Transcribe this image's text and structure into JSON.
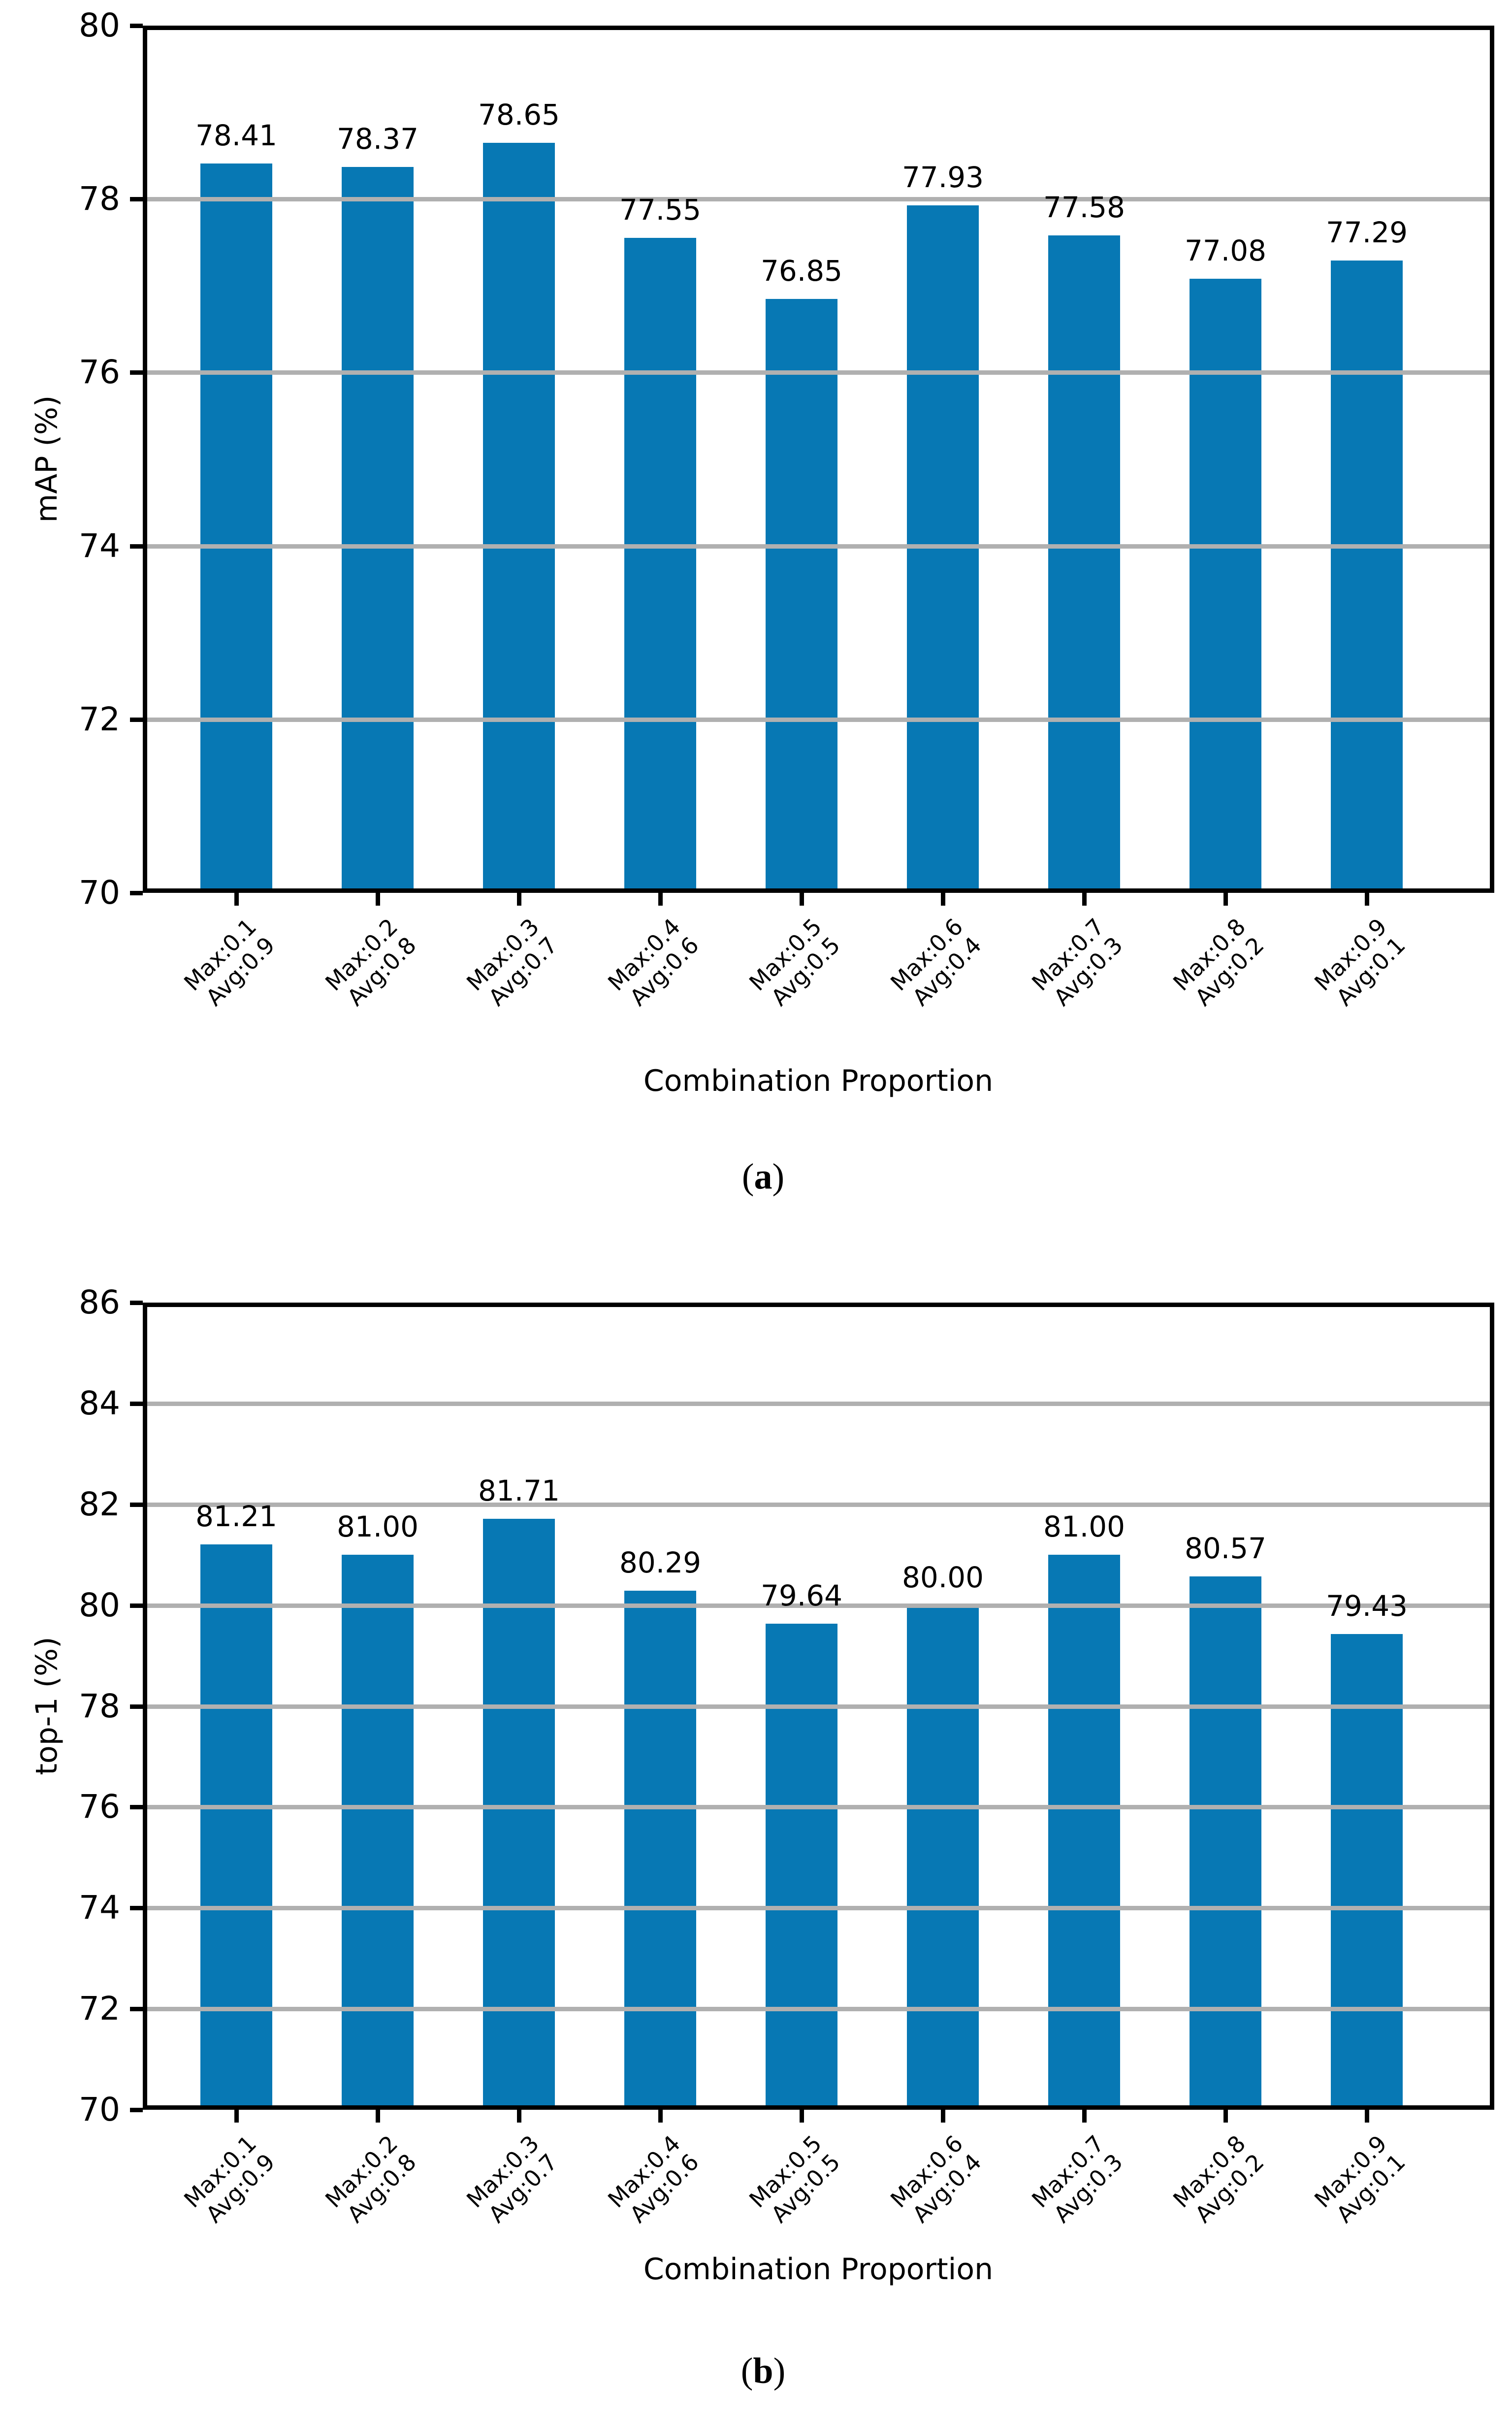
{
  "figure": {
    "captions": [
      {
        "open": "(",
        "letter": "a",
        "close": ")"
      },
      {
        "open": "(",
        "letter": "b",
        "close": ")"
      }
    ]
  },
  "colors": {
    "bar": "#0778b4",
    "grid": "#b0b0b0",
    "axis": "#000000",
    "text": "#000000"
  },
  "chart_data": [
    {
      "type": "bar",
      "panel": "a",
      "title": "",
      "xlabel": "Combination Proportion",
      "ylabel": "mAP (%)",
      "categories": [
        "Max:0.1\nAvg:0.9",
        "Max:0.2\nAvg:0.8",
        "Max:0.3\nAvg:0.7",
        "Max:0.4\nAvg:0.6",
        "Max:0.5\nAvg:0.5",
        "Max:0.6\nAvg:0.4",
        "Max:0.7\nAvg:0.3",
        "Max:0.8\nAvg:0.2",
        "Max:0.9\nAvg:0.1"
      ],
      "values": [
        78.41,
        78.37,
        78.65,
        77.55,
        76.85,
        77.93,
        77.58,
        77.08,
        77.29
      ],
      "data_labels": [
        "78.41",
        "78.37",
        "78.65",
        "77.55",
        "76.85",
        "77.93",
        "77.58",
        "77.08",
        "77.29"
      ],
      "ylim": [
        70,
        80
      ],
      "yticks": [
        70,
        72,
        74,
        76,
        78,
        80
      ],
      "grid": true,
      "grid_over_bars": true,
      "legend": "none",
      "tick_label_rotation_deg": 45
    },
    {
      "type": "bar",
      "panel": "b",
      "title": "",
      "xlabel": "Combination Proportion",
      "ylabel": "top-1 (%)",
      "categories": [
        "Max:0.1\nAvg:0.9",
        "Max:0.2\nAvg:0.8",
        "Max:0.3\nAvg:0.7",
        "Max:0.4\nAvg:0.6",
        "Max:0.5\nAvg:0.5",
        "Max:0.6\nAvg:0.4",
        "Max:0.7\nAvg:0.3",
        "Max:0.8\nAvg:0.2",
        "Max:0.9\nAvg:0.1"
      ],
      "values": [
        81.21,
        81.0,
        81.71,
        80.29,
        79.64,
        80.0,
        81.0,
        80.57,
        79.43
      ],
      "data_labels": [
        "81.21",
        "81.00",
        "81.71",
        "80.29",
        "79.64",
        "80.00",
        "81.00",
        "80.57",
        "79.43"
      ],
      "ylim": [
        70,
        86
      ],
      "yticks": [
        70,
        72,
        74,
        76,
        78,
        80,
        82,
        84,
        86
      ],
      "grid": true,
      "grid_over_bars": true,
      "legend": "none",
      "tick_label_rotation_deg": 45
    }
  ]
}
